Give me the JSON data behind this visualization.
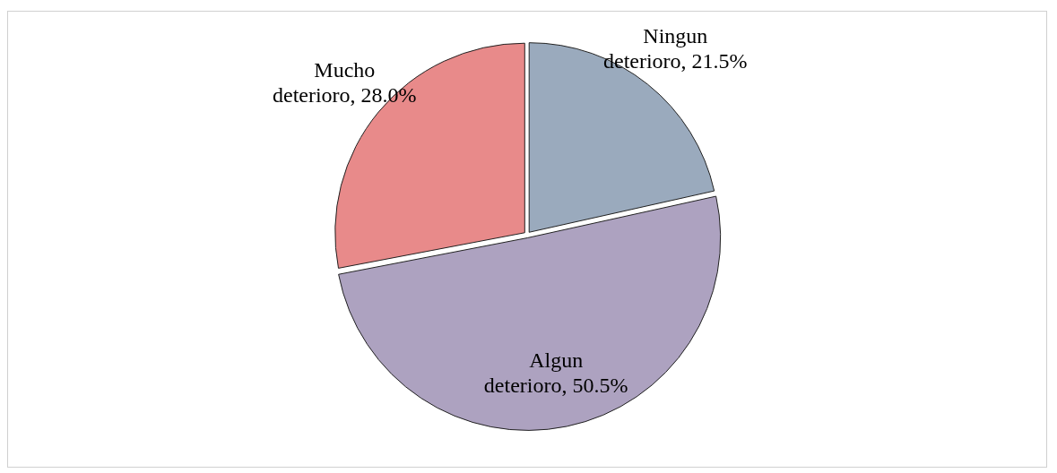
{
  "chart_data": {
    "type": "pie",
    "categories": [
      "Ningun deterioro",
      "Algun deterioro",
      "Mucho deterioro"
    ],
    "values": [
      21.5,
      50.5,
      28.0
    ],
    "value_labels": [
      "21.5%",
      "50.5%",
      "28.0%"
    ],
    "colors": [
      "#9aaabd",
      "#ada2c0",
      "#e88a8a"
    ],
    "legend": false
  }
}
